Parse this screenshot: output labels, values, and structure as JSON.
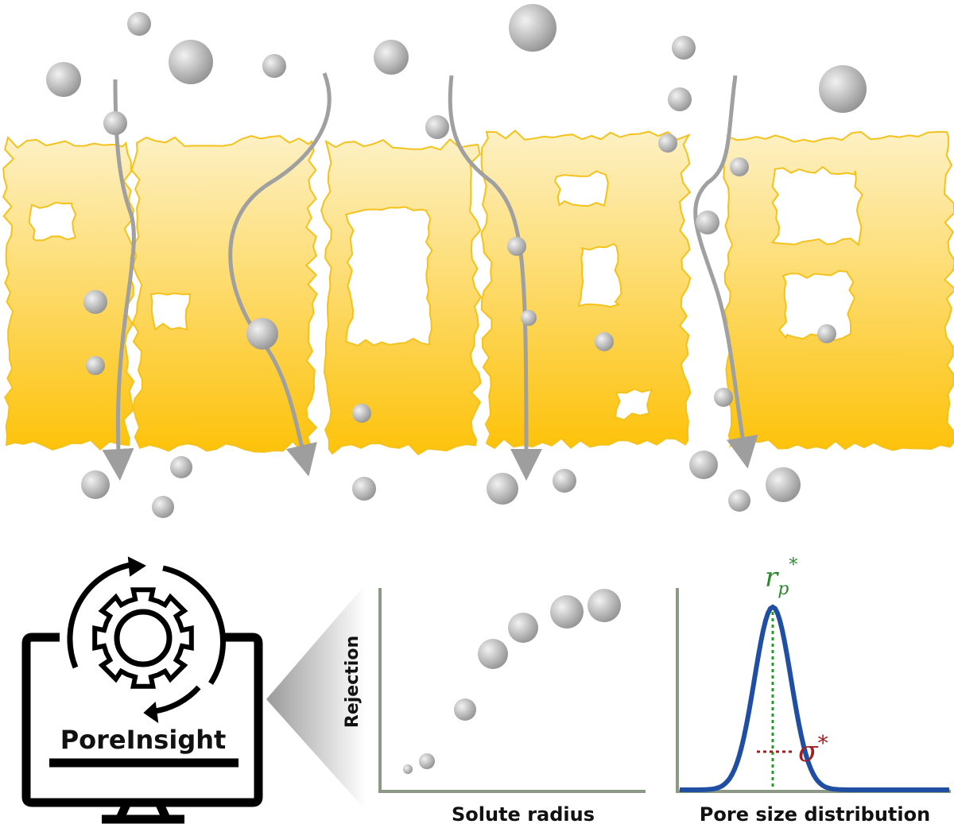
{
  "software": {
    "name": "PoreInsight"
  },
  "rejection_plot": {
    "y_label": "Rejection",
    "x_label": "Solute radius"
  },
  "distribution_plot": {
    "x_label": "Pore size distribution",
    "mean_label": {
      "symbol": "r",
      "subscript": "p",
      "superscript": "*"
    },
    "spread_label": {
      "symbol": "σ",
      "superscript": "*"
    }
  }
}
